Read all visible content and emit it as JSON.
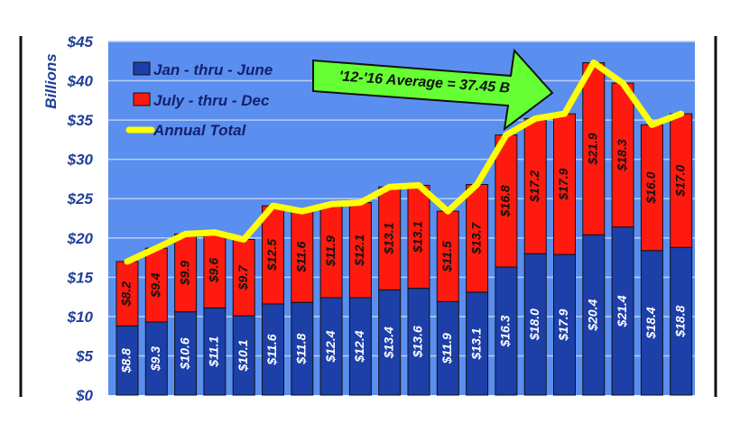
{
  "chart_data": {
    "type": "bar",
    "stacked": true,
    "ylabel": "Billions",
    "ylim": [
      0,
      45
    ],
    "ytick_labels": [
      "$0",
      "$5",
      "$10",
      "$15",
      "$20",
      "$25",
      "$30",
      "$35",
      "$40",
      "$45"
    ],
    "grid": true,
    "legend_position": "top-left",
    "series": [
      {
        "name": "Jan - thru - June",
        "color": "#1c3fa8",
        "values": [
          8.8,
          9.3,
          10.6,
          11.1,
          10.1,
          11.6,
          11.8,
          12.4,
          12.4,
          13.4,
          13.6,
          11.9,
          13.1,
          16.3,
          18.0,
          17.9,
          20.4,
          21.4,
          18.4,
          18.8
        ],
        "labels": [
          "$8.8",
          "$9.3",
          "$10.6",
          "$11.1",
          "$10.1",
          "$11.6",
          "$11.8",
          "$12.4",
          "$12.4",
          "$13.4",
          "$13.6",
          "$11.9",
          "$13.1",
          "$16.3",
          "$18.0",
          "$17.9",
          "$20.4",
          "$21.4",
          "$18.4",
          "$18.8"
        ]
      },
      {
        "name": "July - thru - Dec",
        "color": "#ff1a0f",
        "values": [
          8.2,
          9.4,
          9.9,
          9.6,
          9.7,
          12.5,
          11.6,
          11.9,
          12.1,
          13.1,
          13.1,
          11.5,
          13.7,
          16.8,
          17.2,
          17.9,
          21.9,
          18.3,
          16.0,
          17.0
        ],
        "labels": [
          "$8.2",
          "$9.4",
          "$9.9",
          "$9.6",
          "$9.7",
          "$12.5",
          "$11.6",
          "$11.9",
          "$12.1",
          "$13.1",
          "$13.1",
          "$11.5",
          "$13.7",
          "$16.8",
          "$17.2",
          "$17.9",
          "$21.9",
          "$18.3",
          "$16.0",
          "$17.0"
        ]
      },
      {
        "name": "Annual Total",
        "type": "line",
        "color": "#ffff00",
        "values": [
          17.0,
          18.7,
          20.5,
          20.7,
          19.8,
          24.1,
          23.4,
          24.3,
          24.5,
          26.5,
          26.7,
          23.4,
          26.8,
          33.1,
          35.2,
          35.8,
          42.3,
          39.7,
          34.4,
          35.8
        ]
      }
    ],
    "annotation": {
      "text": "'12-'16 Average = 37.45 B",
      "color": "#66ff33"
    }
  },
  "colors": {
    "plot_bg": "#5a8ff0",
    "grid": "#b8cdf5",
    "bar_outline": "#111111",
    "frame": "#111111"
  }
}
